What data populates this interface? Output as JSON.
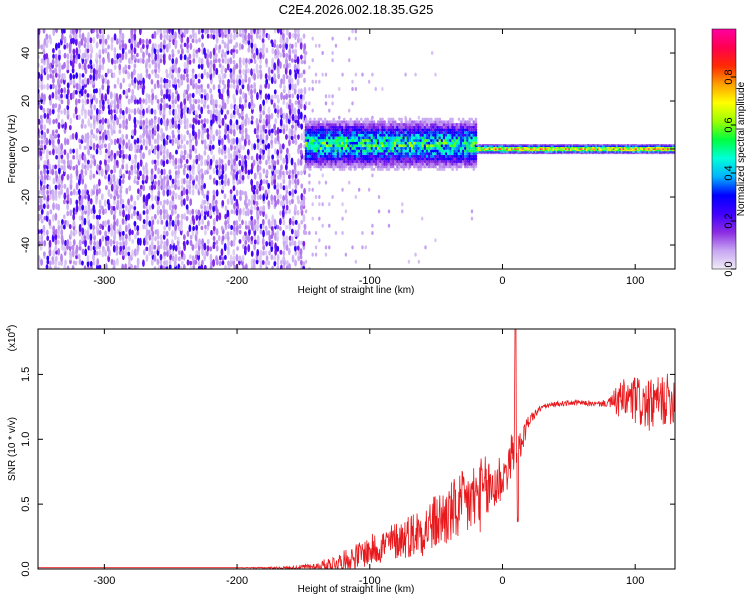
{
  "chart_data": [
    {
      "type": "heatmap",
      "title": "C2E4.2026.002.18.35.G25",
      "xlabel": "Height of straight line (km)",
      "ylabel": "Frequency (Hz)",
      "xlim": [
        -350,
        130
      ],
      "ylim": [
        -50,
        50
      ],
      "x_ticks": [
        -300,
        -200,
        -100,
        0,
        100
      ],
      "y_ticks": [
        -40,
        -20,
        0,
        20,
        40
      ],
      "colorbar": {
        "label": "Normalized spectral amplitude",
        "range": [
          0,
          1
        ],
        "ticks": [
          0.0,
          0.2,
          0.4,
          0.6,
          0.8
        ],
        "colors": [
          "#f0ecf6",
          "#c7a6f2",
          "#8a2be2",
          "#3f00ff",
          "#0000ff",
          "#00b4ff",
          "#00ffd8",
          "#00ff40",
          "#9cff00",
          "#ffff00",
          "#ffa000",
          "#ff2a00",
          "#ff0050",
          "#ff00a0"
        ]
      },
      "regions": [
        {
          "name": "noise",
          "x_range": [
            -350,
            -148
          ],
          "freq_range": [
            -50,
            50
          ],
          "amplitude": "0.1-0.35"
        },
        {
          "name": "transition",
          "x_range": [
            -148,
            -20
          ],
          "center_freq": 2,
          "spread_hz": 8,
          "amplitude": "0.3-0.65"
        },
        {
          "name": "signal",
          "x_range": [
            -20,
            130
          ],
          "center_freq": 0,
          "spread_hz": 2,
          "amplitude": "0.5-0.9"
        }
      ]
    },
    {
      "type": "line",
      "xlabel": "Height of straight line (km)",
      "ylabel": "SNR (10 * v/v)",
      "exponent_label": "(x10",
      "exponent": "4",
      "exponent_close": ")",
      "xlim": [
        -350,
        130
      ],
      "ylim": [
        0,
        1.85
      ],
      "x_ticks": [
        -300,
        -200,
        -100,
        0,
        100
      ],
      "y_ticks": [
        "0.0",
        "0.5",
        "1.0",
        "1.5"
      ],
      "series": [
        {
          "name": "SNR",
          "color": "#e8191c",
          "x": [
            -350,
            -300,
            -250,
            -200,
            -160,
            -140,
            -120,
            -100,
            -80,
            -60,
            -40,
            -20,
            -5,
            5,
            8,
            10,
            12,
            15,
            20,
            30,
            40,
            50,
            60,
            70,
            80,
            88,
            100,
            110,
            120,
            130
          ],
          "y": [
            0.01,
            0.01,
            0.01,
            0.01,
            0.01,
            0.02,
            0.06,
            0.14,
            0.22,
            0.3,
            0.42,
            0.55,
            0.65,
            0.78,
            0.95,
            1.1,
            0.9,
            1.0,
            1.15,
            1.25,
            1.27,
            1.28,
            1.28,
            1.27,
            1.28,
            1.3,
            1.3,
            1.25,
            1.3,
            1.32
          ],
          "noise_amplitude": [
            0,
            0,
            0,
            0,
            0.01,
            0.03,
            0.08,
            0.12,
            0.15,
            0.2,
            0.25,
            0.3,
            0.25,
            0.15,
            0.2,
            0.3,
            0.15,
            0.1,
            0.05,
            0.02,
            0.02,
            0.02,
            0.02,
            0.02,
            0.03,
            0.15,
            0.2,
            0.2,
            0.2,
            0.2
          ]
        }
      ]
    }
  ]
}
